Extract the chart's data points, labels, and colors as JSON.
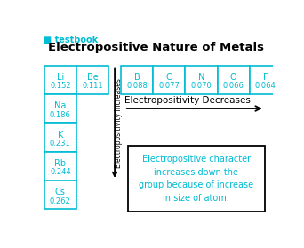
{
  "title": "Electropositive Nature of Metals",
  "logo_text": "■ testbook",
  "cyan": "#00bcd4",
  "black": "#000000",
  "white": "#ffffff",
  "bg": "#ffffff",
  "row1_elements": [
    "Li",
    "Be"
  ],
  "row1_values": [
    "0.152",
    "0.111"
  ],
  "top_elements": [
    "B",
    "C",
    "N",
    "O",
    "F"
  ],
  "top_values": [
    "0.088",
    "0.077",
    "0.070",
    "0.066",
    "0.064"
  ],
  "col1_elements": [
    "Na",
    "K",
    "Rb",
    "Cs"
  ],
  "col1_values": [
    "0.186",
    "0.231",
    "0.244",
    "0.262"
  ],
  "arrow_h_text": "Electropositivity Decreases",
  "arrow_v_text": "Electropositivity Increases",
  "box_text": "Electropositive character\nincreases down the\ngroup because of increase\nin size of atom."
}
